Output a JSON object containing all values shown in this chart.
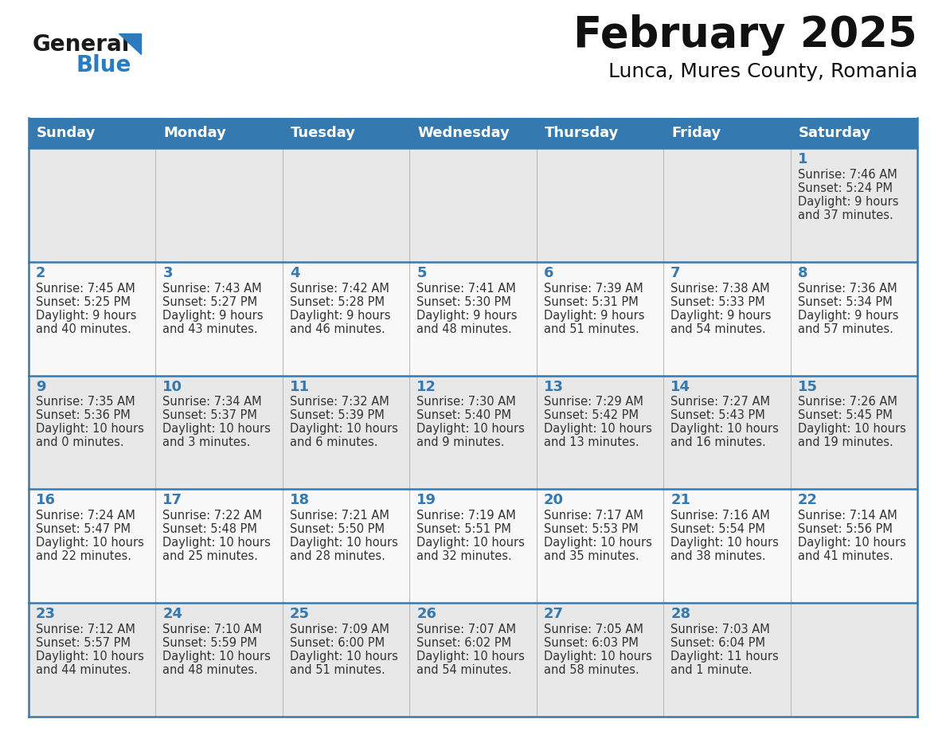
{
  "title": "February 2025",
  "subtitle": "Lunca, Mures County, Romania",
  "days_of_week": [
    "Sunday",
    "Monday",
    "Tuesday",
    "Wednesday",
    "Thursday",
    "Friday",
    "Saturday"
  ],
  "header_bg_color": "#3579b1",
  "header_text_color": "#ffffff",
  "row_number_bg": "#e8e8e8",
  "cell_bg_color": "#ffffff",
  "grid_line_color": "#3579b1",
  "day_number_color": "#3579b1",
  "text_color": "#333333",
  "calendar_data": [
    {
      "day": 1,
      "col": 6,
      "row": 0,
      "sunrise": "7:46 AM",
      "sunset": "5:24 PM",
      "daylight_hours": 9,
      "daylight_minutes": 37
    },
    {
      "day": 2,
      "col": 0,
      "row": 1,
      "sunrise": "7:45 AM",
      "sunset": "5:25 PM",
      "daylight_hours": 9,
      "daylight_minutes": 40
    },
    {
      "day": 3,
      "col": 1,
      "row": 1,
      "sunrise": "7:43 AM",
      "sunset": "5:27 PM",
      "daylight_hours": 9,
      "daylight_minutes": 43
    },
    {
      "day": 4,
      "col": 2,
      "row": 1,
      "sunrise": "7:42 AM",
      "sunset": "5:28 PM",
      "daylight_hours": 9,
      "daylight_minutes": 46
    },
    {
      "day": 5,
      "col": 3,
      "row": 1,
      "sunrise": "7:41 AM",
      "sunset": "5:30 PM",
      "daylight_hours": 9,
      "daylight_minutes": 48
    },
    {
      "day": 6,
      "col": 4,
      "row": 1,
      "sunrise": "7:39 AM",
      "sunset": "5:31 PM",
      "daylight_hours": 9,
      "daylight_minutes": 51
    },
    {
      "day": 7,
      "col": 5,
      "row": 1,
      "sunrise": "7:38 AM",
      "sunset": "5:33 PM",
      "daylight_hours": 9,
      "daylight_minutes": 54
    },
    {
      "day": 8,
      "col": 6,
      "row": 1,
      "sunrise": "7:36 AM",
      "sunset": "5:34 PM",
      "daylight_hours": 9,
      "daylight_minutes": 57
    },
    {
      "day": 9,
      "col": 0,
      "row": 2,
      "sunrise": "7:35 AM",
      "sunset": "5:36 PM",
      "daylight_hours": 10,
      "daylight_minutes": 0
    },
    {
      "day": 10,
      "col": 1,
      "row": 2,
      "sunrise": "7:34 AM",
      "sunset": "5:37 PM",
      "daylight_hours": 10,
      "daylight_minutes": 3
    },
    {
      "day": 11,
      "col": 2,
      "row": 2,
      "sunrise": "7:32 AM",
      "sunset": "5:39 PM",
      "daylight_hours": 10,
      "daylight_minutes": 6
    },
    {
      "day": 12,
      "col": 3,
      "row": 2,
      "sunrise": "7:30 AM",
      "sunset": "5:40 PM",
      "daylight_hours": 10,
      "daylight_minutes": 9
    },
    {
      "day": 13,
      "col": 4,
      "row": 2,
      "sunrise": "7:29 AM",
      "sunset": "5:42 PM",
      "daylight_hours": 10,
      "daylight_minutes": 13
    },
    {
      "day": 14,
      "col": 5,
      "row": 2,
      "sunrise": "7:27 AM",
      "sunset": "5:43 PM",
      "daylight_hours": 10,
      "daylight_minutes": 16
    },
    {
      "day": 15,
      "col": 6,
      "row": 2,
      "sunrise": "7:26 AM",
      "sunset": "5:45 PM",
      "daylight_hours": 10,
      "daylight_minutes": 19
    },
    {
      "day": 16,
      "col": 0,
      "row": 3,
      "sunrise": "7:24 AM",
      "sunset": "5:47 PM",
      "daylight_hours": 10,
      "daylight_minutes": 22
    },
    {
      "day": 17,
      "col": 1,
      "row": 3,
      "sunrise": "7:22 AM",
      "sunset": "5:48 PM",
      "daylight_hours": 10,
      "daylight_minutes": 25
    },
    {
      "day": 18,
      "col": 2,
      "row": 3,
      "sunrise": "7:21 AM",
      "sunset": "5:50 PM",
      "daylight_hours": 10,
      "daylight_minutes": 28
    },
    {
      "day": 19,
      "col": 3,
      "row": 3,
      "sunrise": "7:19 AM",
      "sunset": "5:51 PM",
      "daylight_hours": 10,
      "daylight_minutes": 32
    },
    {
      "day": 20,
      "col": 4,
      "row": 3,
      "sunrise": "7:17 AM",
      "sunset": "5:53 PM",
      "daylight_hours": 10,
      "daylight_minutes": 35
    },
    {
      "day": 21,
      "col": 5,
      "row": 3,
      "sunrise": "7:16 AM",
      "sunset": "5:54 PM",
      "daylight_hours": 10,
      "daylight_minutes": 38
    },
    {
      "day": 22,
      "col": 6,
      "row": 3,
      "sunrise": "7:14 AM",
      "sunset": "5:56 PM",
      "daylight_hours": 10,
      "daylight_minutes": 41
    },
    {
      "day": 23,
      "col": 0,
      "row": 4,
      "sunrise": "7:12 AM",
      "sunset": "5:57 PM",
      "daylight_hours": 10,
      "daylight_minutes": 44
    },
    {
      "day": 24,
      "col": 1,
      "row": 4,
      "sunrise": "7:10 AM",
      "sunset": "5:59 PM",
      "daylight_hours": 10,
      "daylight_minutes": 48
    },
    {
      "day": 25,
      "col": 2,
      "row": 4,
      "sunrise": "7:09 AM",
      "sunset": "6:00 PM",
      "daylight_hours": 10,
      "daylight_minutes": 51
    },
    {
      "day": 26,
      "col": 3,
      "row": 4,
      "sunrise": "7:07 AM",
      "sunset": "6:02 PM",
      "daylight_hours": 10,
      "daylight_minutes": 54
    },
    {
      "day": 27,
      "col": 4,
      "row": 4,
      "sunrise": "7:05 AM",
      "sunset": "6:03 PM",
      "daylight_hours": 10,
      "daylight_minutes": 58
    },
    {
      "day": 28,
      "col": 5,
      "row": 4,
      "sunrise": "7:03 AM",
      "sunset": "6:04 PM",
      "daylight_hours": 11,
      "daylight_minutes": 1
    }
  ],
  "num_rows": 5,
  "logo_general_color": "#1a1a1a",
  "logo_blue_color": "#2a7bbf",
  "logo_triangle_color": "#2a7bbf"
}
